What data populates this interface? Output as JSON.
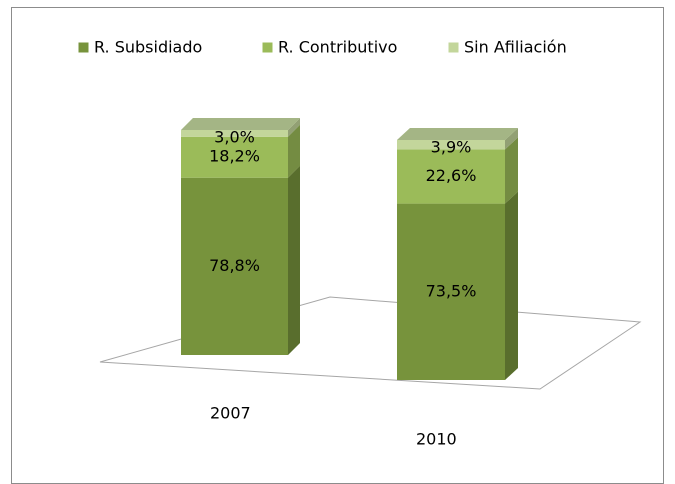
{
  "chart_data": {
    "type": "bar",
    "stacked": true,
    "categories": [
      "2007",
      "2010"
    ],
    "series": [
      {
        "name": "R. Subsidiado",
        "color": "#77933c",
        "values": [
          78.8,
          73.5
        ],
        "value_labels": [
          "78,8%",
          "73,5%"
        ]
      },
      {
        "name": "R. Contributivo",
        "color": "#9bbb59",
        "values": [
          18.2,
          22.6
        ],
        "value_labels": [
          "18,2%",
          "22,6%"
        ]
      },
      {
        "name": "Sin Afiliación",
        "color": "#c3d69b",
        "values": [
          3.0,
          3.9
        ],
        "value_labels": [
          "3,0%",
          "3,9%"
        ]
      }
    ],
    "legend": "top"
  }
}
